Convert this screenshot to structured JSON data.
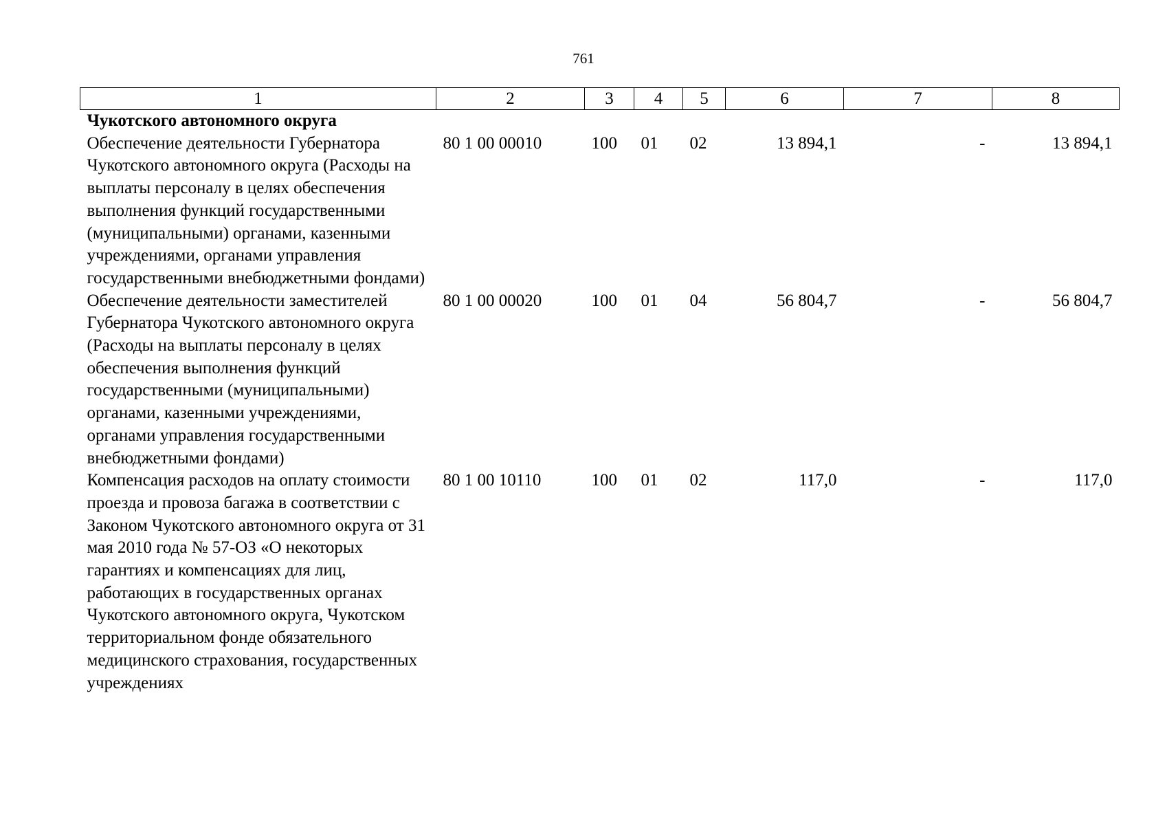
{
  "page_number": "761",
  "header": [
    "1",
    "2",
    "3",
    "4",
    "5",
    "6",
    "7",
    "8"
  ],
  "section_title": "Чукотского автономного округа",
  "rows": [
    {
      "name": "Обеспечение деятельности Губернатора Чукотского автономного округа (Расходы на выплаты персоналу в целях обеспечения выполнения функций государственными (муниципальными) органами, казенными учреждениями, органами управления государственными внебюджетными фондами)",
      "code": "80 1 00 00010",
      "c3": "100",
      "c4": "01",
      "c5": "02",
      "c6": "13 894,1",
      "c7": "-",
      "c8": "13 894,1"
    },
    {
      "name": "Обеспечение деятельности заместителей Губернатора Чукотского автономного округа (Расходы на выплаты персоналу в целях обеспечения выполнения функций государственными (муниципальными) органами, казенными учреждениями, органами управления государственными внебюджетными фондами)",
      "code": "80 1 00 00020",
      "c3": "100",
      "c4": "01",
      "c5": "04",
      "c6": "56 804,7",
      "c7": "-",
      "c8": "56 804,7"
    },
    {
      "name": "Компенсация расходов на оплату стоимости проезда и провоза багажа в соответствии с Законом Чукотского автономного округа от 31 мая 2010 года № 57-ОЗ «О некоторых гарантиях и компенсациях для лиц, работающих в государственных органах Чукотского автономного округа, Чукотском территориальном фонде обязательного медицинского страхования, государственных учреждениях",
      "code": "80 1 00 10110",
      "c3": "100",
      "c4": "01",
      "c5": "02",
      "c6": "117,0",
      "c7": "-",
      "c8": "117,0"
    }
  ]
}
